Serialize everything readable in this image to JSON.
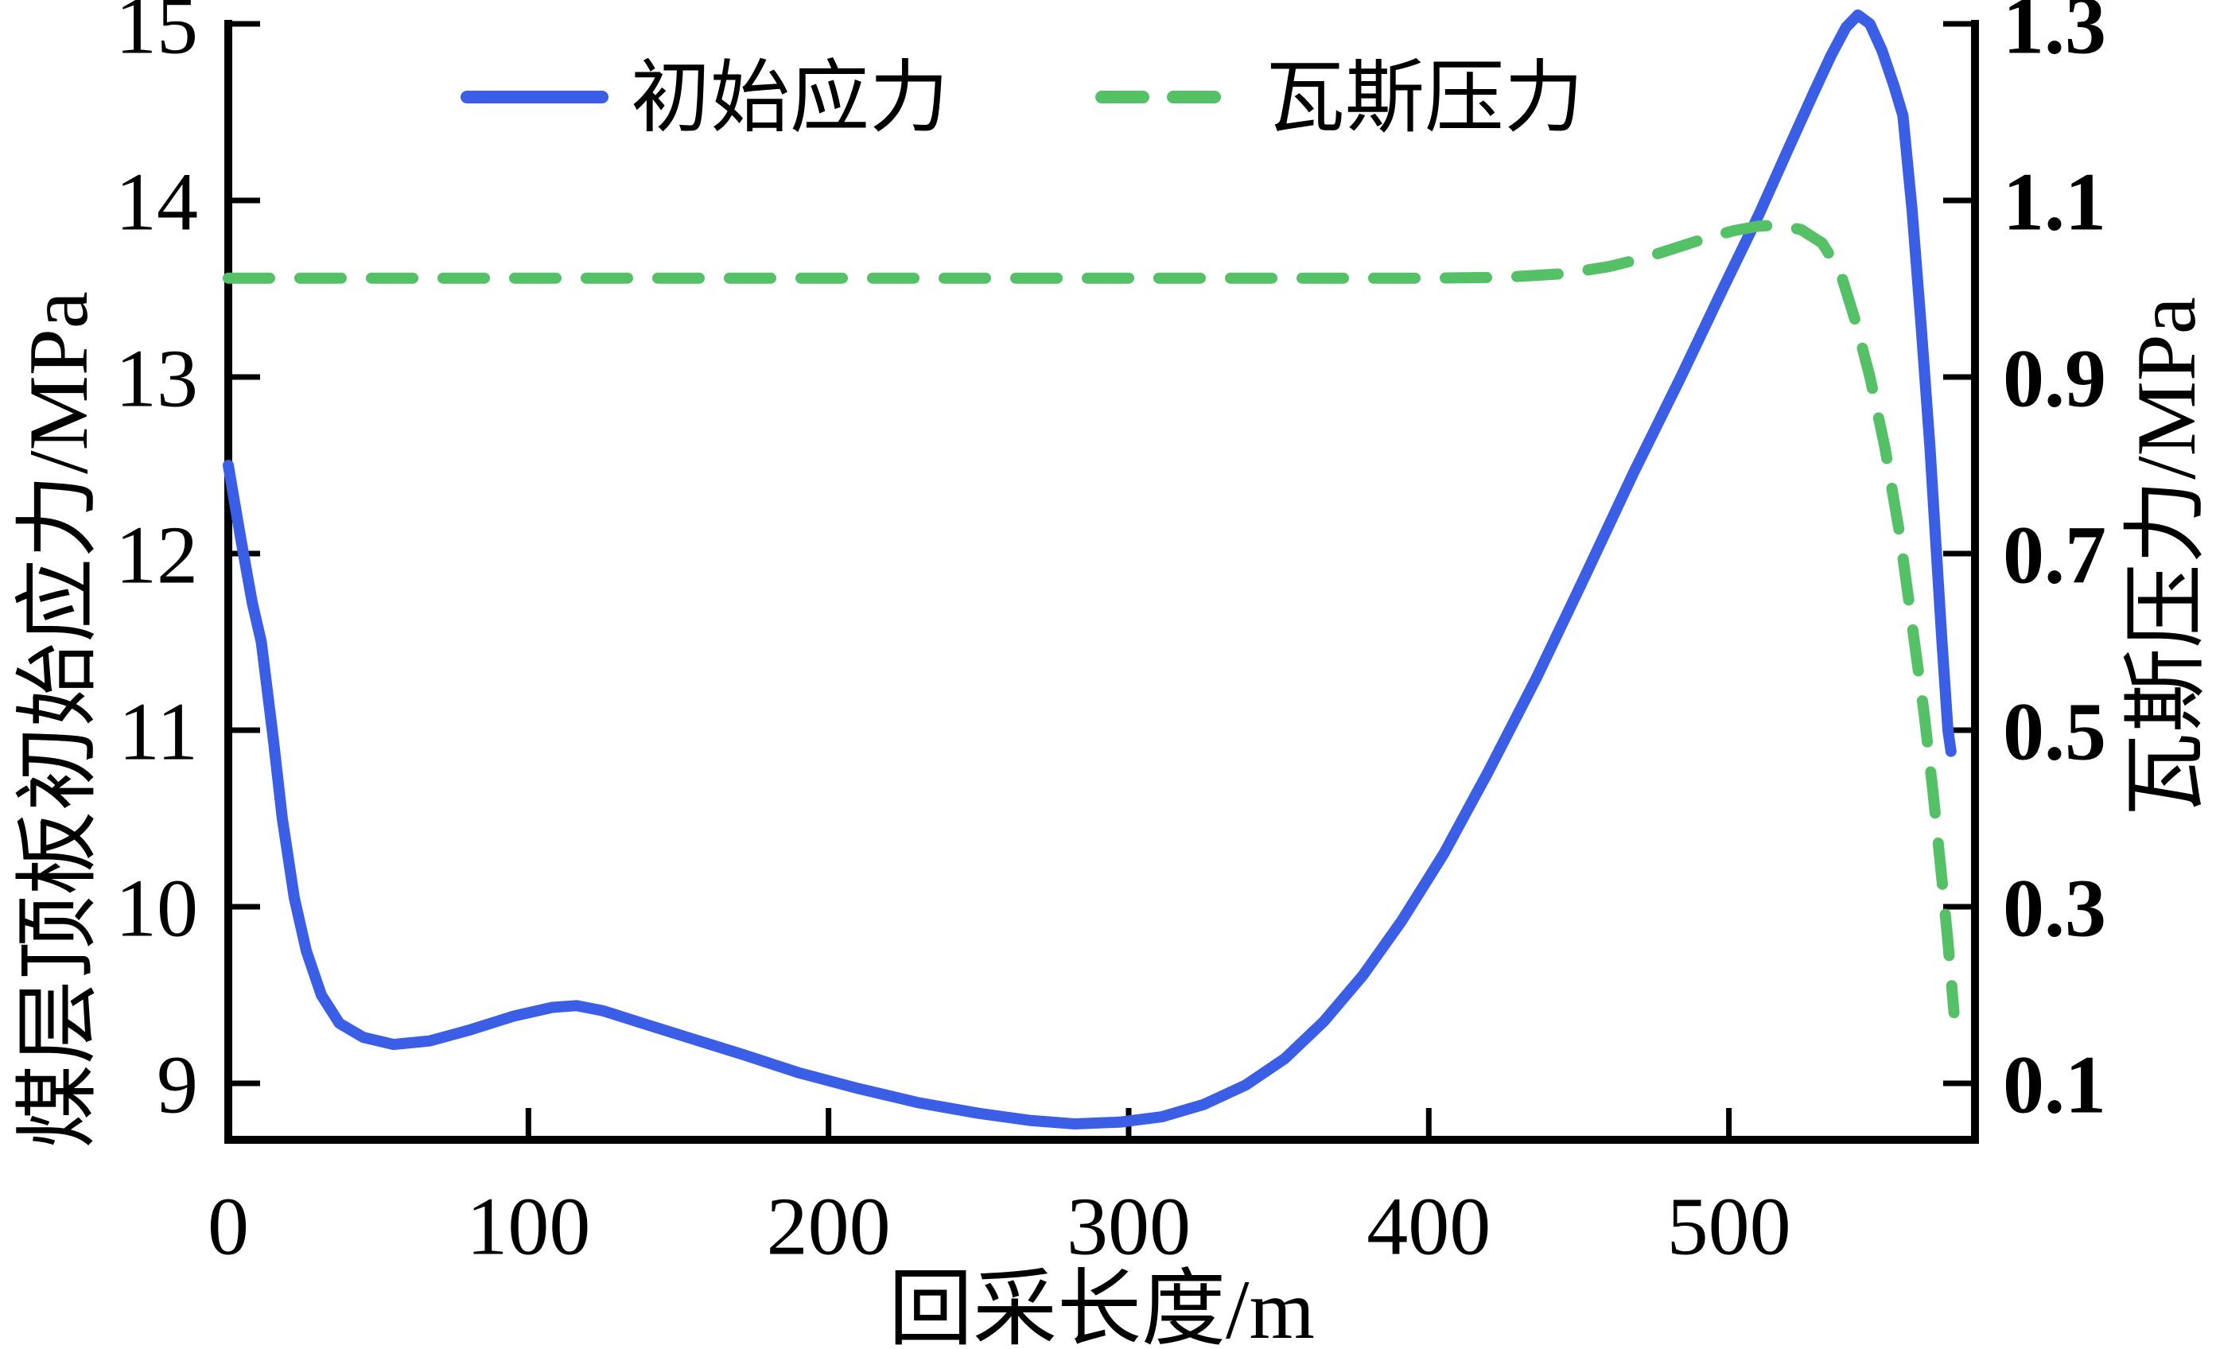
{
  "chart_data": {
    "type": "line",
    "title": "",
    "xlabel": "回采长度/m",
    "ylabel_left": "煤层顶板初始应力/MPa",
    "ylabel_right": "瓦斯压力/MPa",
    "grid": "off",
    "legend_position": "top-center-inside",
    "axes": {
      "x": {
        "range": [
          0,
          582
        ],
        "tick_values": [
          0,
          100,
          200,
          300,
          400,
          500
        ],
        "tick_labels": [
          "0",
          "100",
          "200",
          "300",
          "400",
          "500"
        ]
      },
      "left": {
        "range": [
          8.68,
          15.0
        ],
        "tick_values": [
          9,
          10,
          11,
          12,
          13,
          14,
          15
        ],
        "tick_labels": [
          "9",
          "10",
          "11",
          "12",
          "13",
          "14",
          "15"
        ]
      },
      "right": {
        "range": [
          0.036,
          1.3
        ],
        "tick_values": [
          0.1,
          0.3,
          0.5,
          0.7,
          0.9,
          1.1,
          1.3
        ],
        "tick_labels": [
          "0.1",
          "0.3",
          "0.5",
          "0.7",
          "0.9",
          "1.1",
          "1.3"
        ]
      }
    },
    "colors": {
      "stress_blue": "#3a5fe6",
      "gas_green": "#55c167",
      "axis_black": "#000000"
    },
    "legend": [
      {
        "label": "初始应力",
        "color": "#3a5fe6",
        "style": "solid"
      },
      {
        "label": "瓦斯压力",
        "color": "#55c167",
        "style": "dashed"
      }
    ],
    "series": [
      {
        "name": "初始应力",
        "axis": "left",
        "color": "#3a5fe6",
        "style": "solid",
        "points": [
          [
            0,
            12.5
          ],
          [
            4,
            12.1
          ],
          [
            8,
            11.72
          ],
          [
            11,
            11.5
          ],
          [
            15,
            10.95
          ],
          [
            18,
            10.5
          ],
          [
            22,
            10.05
          ],
          [
            26,
            9.75
          ],
          [
            31,
            9.5
          ],
          [
            37,
            9.34
          ],
          [
            45,
            9.26
          ],
          [
            55,
            9.22
          ],
          [
            67,
            9.24
          ],
          [
            80,
            9.3
          ],
          [
            95,
            9.38
          ],
          [
            108,
            9.43
          ],
          [
            116,
            9.44
          ],
          [
            125,
            9.41
          ],
          [
            138,
            9.34
          ],
          [
            155,
            9.25
          ],
          [
            172,
            9.16
          ],
          [
            190,
            9.06
          ],
          [
            210,
            8.97
          ],
          [
            230,
            8.89
          ],
          [
            250,
            8.83
          ],
          [
            267,
            8.79
          ],
          [
            282,
            8.77
          ],
          [
            297,
            8.78
          ],
          [
            311,
            8.81
          ],
          [
            325,
            8.88
          ],
          [
            339,
            8.99
          ],
          [
            352,
            9.14
          ],
          [
            365,
            9.35
          ],
          [
            378,
            9.61
          ],
          [
            391,
            9.92
          ],
          [
            405,
            10.3
          ],
          [
            420,
            10.77
          ],
          [
            436,
            11.3
          ],
          [
            452,
            11.87
          ],
          [
            468,
            12.45
          ],
          [
            484,
            13.0
          ],
          [
            498,
            13.5
          ],
          [
            510,
            13.92
          ],
          [
            520,
            14.3
          ],
          [
            528,
            14.6
          ],
          [
            534,
            14.82
          ],
          [
            539,
            14.98
          ],
          [
            543,
            15.05
          ],
          [
            547,
            15.0
          ],
          [
            551,
            14.85
          ],
          [
            555,
            14.65
          ],
          [
            558,
            14.48
          ],
          [
            561,
            13.95
          ],
          [
            564,
            13.3
          ],
          [
            567,
            12.6
          ],
          [
            569,
            12.05
          ],
          [
            571,
            11.5
          ],
          [
            573,
            11.0
          ],
          [
            574,
            10.88
          ]
        ]
      },
      {
        "name": "瓦斯压力",
        "axis": "right",
        "color": "#55c167",
        "style": "dashed",
        "points": [
          [
            0,
            1.012
          ],
          [
            40,
            1.012
          ],
          [
            80,
            1.012
          ],
          [
            120,
            1.012
          ],
          [
            160,
            1.012
          ],
          [
            200,
            1.012
          ],
          [
            240,
            1.012
          ],
          [
            280,
            1.012
          ],
          [
            320,
            1.012
          ],
          [
            360,
            1.012
          ],
          [
            400,
            1.012
          ],
          [
            425,
            1.013
          ],
          [
            445,
            1.017
          ],
          [
            460,
            1.025
          ],
          [
            472,
            1.035
          ],
          [
            483,
            1.047
          ],
          [
            493,
            1.058
          ],
          [
            502,
            1.066
          ],
          [
            510,
            1.071
          ],
          [
            517,
            1.072
          ],
          [
            524,
            1.067
          ],
          [
            531,
            1.052
          ],
          [
            537,
            1.02
          ],
          [
            542,
            0.965
          ],
          [
            547,
            0.9
          ],
          [
            552,
            0.82
          ],
          [
            557,
            0.72
          ],
          [
            561,
            0.62
          ],
          [
            565,
            0.52
          ],
          [
            568,
            0.43
          ],
          [
            571,
            0.33
          ],
          [
            573,
            0.26
          ],
          [
            575,
            0.18
          ]
        ]
      }
    ]
  }
}
